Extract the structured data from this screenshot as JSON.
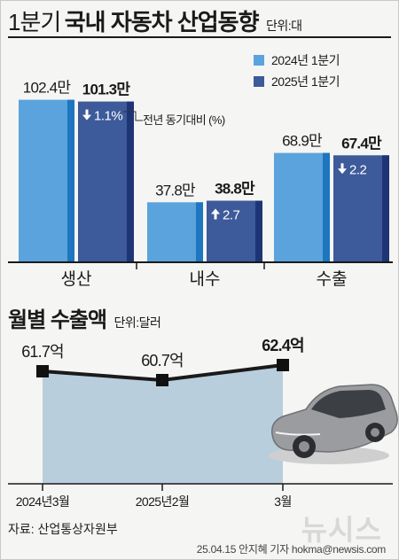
{
  "header": {
    "title_light": "1분기",
    "title_bold": "국내 자동차 산업동향",
    "unit": "단위:대"
  },
  "colors": {
    "series_2024": "#5aa3dc",
    "series_2024_dark": "#1d76bf",
    "series_2025": "#3d5a9a",
    "series_2025_dark": "#1e3575",
    "line": "#1a1a1a",
    "area_fill": "#b9cedc"
  },
  "bar_annotation_label": "전년 동기대비 (%)",
  "line_section": {
    "title": "월별 수출액",
    "unit": "단위:달러"
  },
  "chart_data": [
    {
      "type": "bar",
      "categories": [
        "생산",
        "내수",
        "수출"
      ],
      "series": [
        {
          "name": "2024년 1분기",
          "values": [
            102.4,
            37.8,
            68.9
          ],
          "labels": [
            "102.4만",
            "37.8만",
            "68.9만"
          ]
        },
        {
          "name": "2025년 1분기",
          "values": [
            101.3,
            38.8,
            67.4
          ],
          "labels": [
            "101.3만",
            "38.8만",
            "67.4만"
          ],
          "change": [
            "1.1%",
            "2.7",
            "2.2"
          ],
          "change_dir": [
            "down",
            "up",
            "down"
          ]
        }
      ],
      "ylim": [
        0,
        110
      ],
      "legend_position": "top-right"
    },
    {
      "type": "area",
      "categories": [
        "2024년3월",
        "2025년2월",
        "3월"
      ],
      "values": [
        61.7,
        60.7,
        62.4
      ],
      "labels": [
        "61.7억",
        "60.7억",
        "62.4억"
      ]
    }
  ],
  "footer": {
    "source": "자료: 산업통상자원부",
    "credit": "25.04.15 안지혜 기자 hokma@newsis.com",
    "watermark": "뉴시스"
  }
}
